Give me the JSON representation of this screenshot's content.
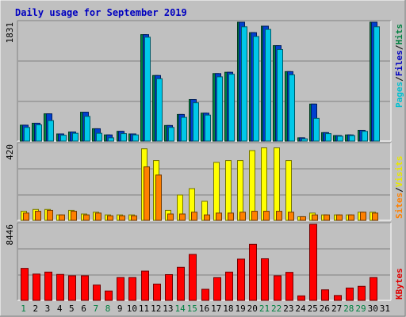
{
  "chart_data": [
    {
      "type": "bar",
      "title": "Daily usage for September 2019",
      "categories": [
        "1",
        "2",
        "3",
        "4",
        "5",
        "6",
        "7",
        "8",
        "9",
        "10",
        "11",
        "12",
        "13",
        "14",
        "15",
        "16",
        "17",
        "18",
        "19",
        "20",
        "21",
        "22",
        "23",
        "24",
        "25",
        "26",
        "27",
        "28",
        "29",
        "30",
        "31"
      ],
      "weekend_days": [
        "1",
        "7",
        "8",
        "14",
        "15",
        "21",
        "22",
        "28",
        "29"
      ],
      "ymax_label": "1831",
      "ylim": [
        0,
        1831
      ],
      "legend": [
        "Pages",
        "Files",
        "Hits"
      ],
      "legend_colors": [
        "#00c0d0",
        "#0000c0",
        "#008040"
      ],
      "series": [
        {
          "name": "Hits",
          "color": "#008040",
          "values": [
            245,
            275,
            420,
            110,
            140,
            445,
            190,
            95,
            150,
            110,
            1640,
            1010,
            240,
            410,
            640,
            430,
            1040,
            1060,
            1831,
            1670,
            1770,
            1470,
            1070,
            50,
            570,
            130,
            85,
            95,
            165,
            1831,
            0
          ]
        },
        {
          "name": "Files",
          "color": "#0040d0",
          "values": [
            245,
            275,
            420,
            110,
            140,
            445,
            190,
            95,
            150,
            110,
            1640,
            1010,
            240,
            410,
            640,
            430,
            1040,
            1060,
            1831,
            1670,
            1770,
            1470,
            1070,
            50,
            570,
            130,
            85,
            95,
            165,
            1831,
            0
          ]
        },
        {
          "name": "Pages",
          "color": "#00c8e8",
          "values": [
            210,
            250,
            315,
            90,
            120,
            380,
            120,
            50,
            115,
            95,
            1600,
            960,
            210,
            365,
            590,
            400,
            990,
            1030,
            1760,
            1610,
            1720,
            1410,
            1020,
            35,
            350,
            115,
            75,
            85,
            150,
            1760,
            0
          ]
        }
      ]
    },
    {
      "type": "bar",
      "ymax_label": "420",
      "ylim": [
        0,
        420
      ],
      "legend": [
        "Sites",
        "Visits"
      ],
      "legend_colors": [
        "#ff8000",
        "#e8e800"
      ],
      "series": [
        {
          "name": "Visits",
          "color": "#ffff00",
          "values": [
            50,
            60,
            60,
            30,
            55,
            35,
            45,
            30,
            30,
            30,
            395,
            330,
            55,
            140,
            175,
            105,
            320,
            330,
            330,
            385,
            400,
            400,
            330,
            20,
            40,
            30,
            30,
            30,
            45,
            45,
            0
          ]
        },
        {
          "name": "Sites",
          "color": "#ff8000",
          "values": [
            40,
            50,
            55,
            30,
            50,
            30,
            40,
            25,
            25,
            25,
            295,
            250,
            35,
            35,
            45,
            30,
            40,
            40,
            45,
            50,
            50,
            50,
            45,
            20,
            30,
            30,
            30,
            30,
            45,
            40,
            0
          ]
        }
      ]
    },
    {
      "type": "bar",
      "ymax_label": "8446",
      "ylim": [
        0,
        8446
      ],
      "legend": [
        "KBytes"
      ],
      "legend_colors": [
        "#e00000"
      ],
      "series": [
        {
          "name": "KBytes",
          "color": "#ff0000",
          "values": [
            3550,
            2920,
            3140,
            2880,
            2730,
            2730,
            1700,
            1040,
            2530,
            2530,
            3250,
            1810,
            2860,
            3670,
            5100,
            1230,
            2520,
            3140,
            4580,
            6220,
            4620,
            2730,
            3110,
            500,
            8446,
            1170,
            540,
            1370,
            1560,
            2530,
            0
          ]
        }
      ]
    }
  ]
}
